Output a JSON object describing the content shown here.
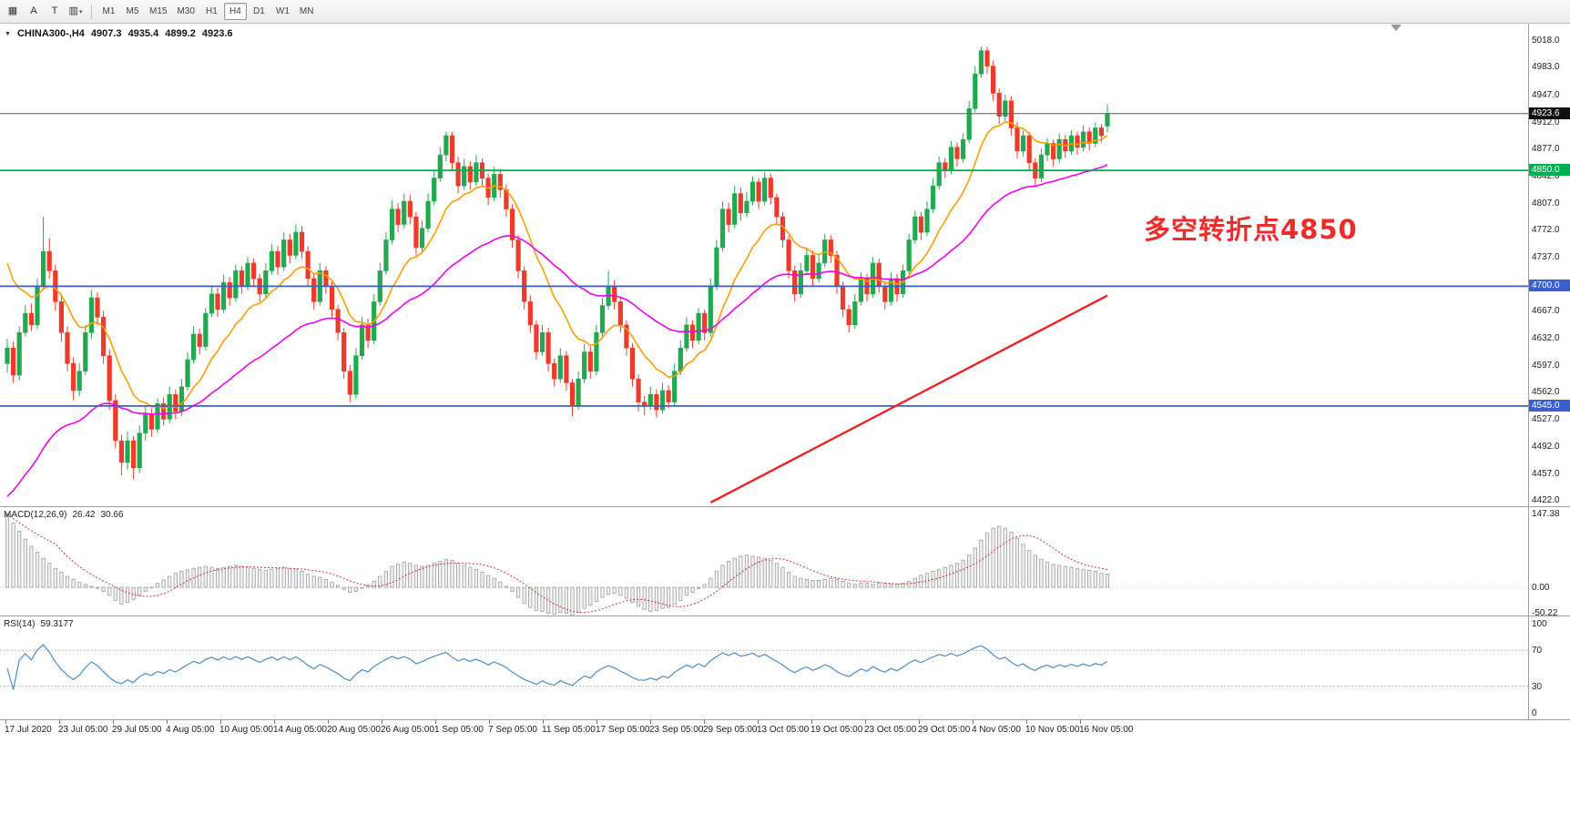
{
  "toolbar": {
    "tools": [
      {
        "name": "chart-window-tool",
        "glyph": "▦"
      },
      {
        "name": "text-annotation-tool",
        "glyph": "A"
      },
      {
        "name": "text-label-tool",
        "glyph": "T"
      },
      {
        "name": "indicators-menu",
        "glyph": "▥",
        "caret": true
      }
    ],
    "timeframes": [
      "M1",
      "M5",
      "M15",
      "M30",
      "H1",
      "H4",
      "D1",
      "W1",
      "MN"
    ],
    "active_timeframe": "H4"
  },
  "icons": {
    "expand": "▼",
    "caret": "▾"
  },
  "symbol_info": {
    "name": "CHINA300-,H4",
    "open": "4907.3",
    "high": "4935.4",
    "low": "4899.2",
    "close": "4923.6"
  },
  "annotation": {
    "text": "多空转折点4850",
    "color": "#ee2b2b"
  },
  "chart_data": {
    "type": "candlestick",
    "symbol": "CHINA300-",
    "timeframe": "H4",
    "title": "CHINA300-,H4",
    "price_range": [
      4414,
      5040
    ],
    "price_axis": [
      "5018.0",
      "4983.0",
      "4947.0",
      "4912.0",
      "4877.0",
      "4842.0",
      "4807.0",
      "4772.0",
      "4737.0",
      "4702.0",
      "4667.0",
      "4632.0",
      "4597.0",
      "4562.0",
      "4527.0",
      "4492.0",
      "4457.0",
      "4422.0"
    ],
    "time_axis": [
      "17 Jul 2020",
      "23 Jul 05:00",
      "29 Jul 05:00",
      "4 Aug 05:00",
      "10 Aug 05:00",
      "14 Aug 05:00",
      "20 Aug 05:00",
      "26 Aug 05:00",
      "1 Sep 05:00",
      "7 Sep 05:00",
      "11 Sep 05:00",
      "17 Sep 05:00",
      "23 Sep 05:00",
      "29 Sep 05:00",
      "13 Oct 05:00",
      "19 Oct 05:00",
      "23 Oct 05:00",
      "29 Oct 05:00",
      "4 Nov 05:00",
      "10 Nov 05:00",
      "16 Nov 05:00"
    ],
    "levels": [
      {
        "price": 4923.6,
        "label": "4923.6",
        "type": "current",
        "color": "#5a5a5a",
        "badge": "#111111"
      },
      {
        "price": 4850.0,
        "label": "4850.0",
        "type": "line",
        "color": "#00b050",
        "badge": "#00b050"
      },
      {
        "price": 4700.0,
        "label": "4700.0",
        "type": "line",
        "color": "#3a5fcd",
        "badge": "#3a5fcd"
      },
      {
        "price": 4545.0,
        "label": "4545.0",
        "type": "line",
        "color": "#3a5fcd",
        "badge": "#3a5fcd"
      }
    ],
    "colors": {
      "up": "#21a94f",
      "down": "#ed3b2b"
    },
    "ma_fast": {
      "period": 12,
      "start": 4750,
      "color": "#ff9d00"
    },
    "ma_slow": {
      "period": 40,
      "start": 4418,
      "color": "#f000f0"
    },
    "trendline": {
      "from_index": 117,
      "from_price": 4420,
      "to_index": 183,
      "to_price": 4688,
      "color": "#f02020"
    },
    "candles": [
      [
        4600,
        4632,
        4588,
        4620
      ],
      [
        4620,
        4628,
        4575,
        4585
      ],
      [
        4585,
        4648,
        4578,
        4640
      ],
      [
        4640,
        4676,
        4635,
        4665
      ],
      [
        4665,
        4678,
        4642,
        4650
      ],
      [
        4650,
        4710,
        4645,
        4700
      ],
      [
        4700,
        4790,
        4695,
        4745
      ],
      [
        4745,
        4762,
        4710,
        4720
      ],
      [
        4720,
        4728,
        4668,
        4680
      ],
      [
        4680,
        4690,
        4628,
        4640
      ],
      [
        4640,
        4648,
        4590,
        4600
      ],
      [
        4600,
        4608,
        4552,
        4565
      ],
      [
        4565,
        4600,
        4558,
        4590
      ],
      [
        4590,
        4650,
        4585,
        4640
      ],
      [
        4640,
        4695,
        4632,
        4685
      ],
      [
        4685,
        4692,
        4650,
        4660
      ],
      [
        4660,
        4668,
        4600,
        4610
      ],
      [
        4610,
        4618,
        4540,
        4552
      ],
      [
        4552,
        4560,
        4490,
        4500
      ],
      [
        4500,
        4508,
        4455,
        4472
      ],
      [
        4472,
        4512,
        4462,
        4500
      ],
      [
        4500,
        4506,
        4450,
        4465
      ],
      [
        4465,
        4520,
        4458,
        4510
      ],
      [
        4510,
        4545,
        4500,
        4535
      ],
      [
        4535,
        4542,
        4505,
        4515
      ],
      [
        4515,
        4555,
        4510,
        4548
      ],
      [
        4548,
        4556,
        4520,
        4528
      ],
      [
        4528,
        4570,
        4522,
        4560
      ],
      [
        4560,
        4566,
        4528,
        4538
      ],
      [
        4538,
        4580,
        4532,
        4570
      ],
      [
        4570,
        4615,
        4565,
        4605
      ],
      [
        4605,
        4648,
        4600,
        4638
      ],
      [
        4638,
        4645,
        4612,
        4622
      ],
      [
        4622,
        4672,
        4617,
        4665
      ],
      [
        4665,
        4700,
        4660,
        4690
      ],
      [
        4690,
        4698,
        4660,
        4670
      ],
      [
        4670,
        4715,
        4665,
        4705
      ],
      [
        4705,
        4712,
        4675,
        4685
      ],
      [
        4685,
        4728,
        4680,
        4720
      ],
      [
        4720,
        4726,
        4690,
        4700
      ],
      [
        4700,
        4738,
        4695,
        4730
      ],
      [
        4730,
        4736,
        4700,
        4710
      ],
      [
        4710,
        4716,
        4680,
        4690
      ],
      [
        4690,
        4730,
        4685,
        4720
      ],
      [
        4720,
        4755,
        4715,
        4745
      ],
      [
        4745,
        4752,
        4715,
        4725
      ],
      [
        4725,
        4770,
        4720,
        4760
      ],
      [
        4760,
        4768,
        4730,
        4740
      ],
      [
        4740,
        4780,
        4735,
        4770
      ],
      [
        4770,
        4778,
        4736,
        4745
      ],
      [
        4745,
        4752,
        4700,
        4710
      ],
      [
        4710,
        4716,
        4670,
        4680
      ],
      [
        4680,
        4730,
        4675,
        4720
      ],
      [
        4720,
        4726,
        4690,
        4700
      ],
      [
        4700,
        4706,
        4660,
        4670
      ],
      [
        4670,
        4676,
        4630,
        4640
      ],
      [
        4640,
        4646,
        4580,
        4590
      ],
      [
        4590,
        4598,
        4550,
        4560
      ],
      [
        4560,
        4620,
        4555,
        4610
      ],
      [
        4610,
        4660,
        4605,
        4650
      ],
      [
        4650,
        4658,
        4620,
        4630
      ],
      [
        4630,
        4690,
        4625,
        4680
      ],
      [
        4680,
        4730,
        4675,
        4720
      ],
      [
        4720,
        4770,
        4715,
        4760
      ],
      [
        4760,
        4812,
        4755,
        4800
      ],
      [
        4800,
        4808,
        4770,
        4780
      ],
      [
        4780,
        4820,
        4775,
        4810
      ],
      [
        4810,
        4818,
        4780,
        4790
      ],
      [
        4790,
        4796,
        4740,
        4750
      ],
      [
        4750,
        4785,
        4745,
        4775
      ],
      [
        4775,
        4820,
        4770,
        4810
      ],
      [
        4810,
        4850,
        4805,
        4840
      ],
      [
        4840,
        4880,
        4835,
        4870
      ],
      [
        4870,
        4900,
        4862,
        4895
      ],
      [
        4895,
        4900,
        4850,
        4860
      ],
      [
        4860,
        4868,
        4820,
        4830
      ],
      [
        4830,
        4865,
        4825,
        4855
      ],
      [
        4855,
        4862,
        4825,
        4835
      ],
      [
        4835,
        4870,
        4830,
        4860
      ],
      [
        4860,
        4866,
        4830,
        4840
      ],
      [
        4840,
        4846,
        4805,
        4815
      ],
      [
        4815,
        4855,
        4810,
        4845
      ],
      [
        4845,
        4852,
        4815,
        4825
      ],
      [
        4825,
        4832,
        4790,
        4800
      ],
      [
        4800,
        4806,
        4750,
        4760
      ],
      [
        4760,
        4766,
        4710,
        4720
      ],
      [
        4720,
        4726,
        4670,
        4680
      ],
      [
        4680,
        4688,
        4640,
        4650
      ],
      [
        4650,
        4656,
        4605,
        4615
      ],
      [
        4615,
        4650,
        4610,
        4640
      ],
      [
        4640,
        4646,
        4590,
        4600
      ],
      [
        4600,
        4606,
        4570,
        4580
      ],
      [
        4580,
        4620,
        4575,
        4610
      ],
      [
        4610,
        4616,
        4565,
        4575
      ],
      [
        4575,
        4580,
        4532,
        4545
      ],
      [
        4545,
        4590,
        4540,
        4580
      ],
      [
        4580,
        4625,
        4575,
        4615
      ],
      [
        4615,
        4622,
        4580,
        4590
      ],
      [
        4590,
        4650,
        4585,
        4640
      ],
      [
        4640,
        4685,
        4635,
        4675
      ],
      [
        4675,
        4720,
        4670,
        4700
      ],
      [
        4700,
        4708,
        4670,
        4680
      ],
      [
        4680,
        4686,
        4640,
        4650
      ],
      [
        4650,
        4656,
        4610,
        4620
      ],
      [
        4620,
        4626,
        4570,
        4580
      ],
      [
        4580,
        4586,
        4538,
        4550
      ],
      [
        4550,
        4558,
        4533,
        4545
      ],
      [
        4545,
        4570,
        4540,
        4560
      ],
      [
        4560,
        4566,
        4530,
        4540
      ],
      [
        4540,
        4575,
        4535,
        4565
      ],
      [
        4565,
        4572,
        4542,
        4550
      ],
      [
        4550,
        4600,
        4545,
        4590
      ],
      [
        4590,
        4630,
        4585,
        4620
      ],
      [
        4620,
        4660,
        4615,
        4650
      ],
      [
        4650,
        4656,
        4620,
        4630
      ],
      [
        4630,
        4672,
        4625,
        4665
      ],
      [
        4665,
        4670,
        4630,
        4640
      ],
      [
        4640,
        4710,
        4635,
        4700
      ],
      [
        4700,
        4760,
        4695,
        4750
      ],
      [
        4750,
        4810,
        4745,
        4800
      ],
      [
        4800,
        4808,
        4770,
        4780
      ],
      [
        4780,
        4830,
        4775,
        4820
      ],
      [
        4820,
        4828,
        4785,
        4795
      ],
      [
        4795,
        4822,
        4790,
        4810
      ],
      [
        4810,
        4842,
        4805,
        4835
      ],
      [
        4835,
        4840,
        4800,
        4810
      ],
      [
        4810,
        4848,
        4805,
        4840
      ],
      [
        4840,
        4846,
        4806,
        4815
      ],
      [
        4815,
        4820,
        4780,
        4790
      ],
      [
        4790,
        4796,
        4750,
        4760
      ],
      [
        4760,
        4766,
        4710,
        4720
      ],
      [
        4720,
        4726,
        4680,
        4690
      ],
      [
        4690,
        4730,
        4685,
        4720
      ],
      [
        4720,
        4750,
        4715,
        4740
      ],
      [
        4740,
        4746,
        4700,
        4710
      ],
      [
        4710,
        4740,
        4705,
        4730
      ],
      [
        4730,
        4768,
        4725,
        4760
      ],
      [
        4760,
        4766,
        4730,
        4740
      ],
      [
        4740,
        4746,
        4690,
        4700
      ],
      [
        4700,
        4706,
        4660,
        4670
      ],
      [
        4670,
        4676,
        4640,
        4650
      ],
      [
        4650,
        4690,
        4645,
        4680
      ],
      [
        4680,
        4718,
        4675,
        4710
      ],
      [
        4710,
        4716,
        4680,
        4690
      ],
      [
        4690,
        4738,
        4685,
        4730
      ],
      [
        4730,
        4736,
        4692,
        4700
      ],
      [
        4700,
        4706,
        4670,
        4680
      ],
      [
        4680,
        4718,
        4675,
        4710
      ],
      [
        4710,
        4716,
        4680,
        4690
      ],
      [
        4690,
        4728,
        4685,
        4720
      ],
      [
        4720,
        4768,
        4715,
        4760
      ],
      [
        4760,
        4798,
        4755,
        4790
      ],
      [
        4790,
        4796,
        4760,
        4770
      ],
      [
        4770,
        4810,
        4765,
        4800
      ],
      [
        4800,
        4840,
        4795,
        4830
      ],
      [
        4830,
        4868,
        4825,
        4860
      ],
      [
        4860,
        4866,
        4840,
        4850
      ],
      [
        4850,
        4888,
        4845,
        4880
      ],
      [
        4880,
        4886,
        4855,
        4865
      ],
      [
        4865,
        4898,
        4860,
        4890
      ],
      [
        4890,
        4940,
        4885,
        4930
      ],
      [
        4930,
        4985,
        4925,
        4975
      ],
      [
        4975,
        5010,
        4970,
        5005
      ],
      [
        5005,
        5010,
        4975,
        4985
      ],
      [
        4985,
        4992,
        4940,
        4950
      ],
      [
        4950,
        4956,
        4910,
        4920
      ],
      [
        4920,
        4948,
        4912,
        4940
      ],
      [
        4940,
        4946,
        4895,
        4905
      ],
      [
        4905,
        4912,
        4865,
        4875
      ],
      [
        4875,
        4902,
        4868,
        4895
      ],
      [
        4895,
        4900,
        4850,
        4860
      ],
      [
        4860,
        4866,
        4828,
        4840
      ],
      [
        4840,
        4878,
        4835,
        4870
      ],
      [
        4870,
        4892,
        4862,
        4885
      ],
      [
        4885,
        4890,
        4855,
        4865
      ],
      [
        4865,
        4898,
        4860,
        4890
      ],
      [
        4890,
        4896,
        4866,
        4875
      ],
      [
        4875,
        4902,
        4870,
        4895
      ],
      [
        4895,
        4900,
        4870,
        4880
      ],
      [
        4880,
        4908,
        4875,
        4900
      ],
      [
        4900,
        4906,
        4876,
        4885
      ],
      [
        4885,
        4912,
        4880,
        4905
      ],
      [
        4905,
        4910,
        4886,
        4895
      ],
      [
        4907.3,
        4935.4,
        4899.2,
        4923.6
      ]
    ],
    "macd": {
      "label": "MACD(12,26,9)",
      "current_main": "26.42",
      "current_signal": "30.66",
      "axis": [
        "147.38",
        "0.00",
        "-50.22"
      ],
      "range": [
        -58,
        160
      ],
      "signal_period": 9,
      "values": [
        147,
        128,
        112,
        96,
        82,
        70,
        58,
        48,
        38,
        30,
        22,
        16,
        10,
        6,
        2,
        -2,
        -8,
        -16,
        -26,
        -34,
        -30,
        -24,
        -16,
        -8,
        0,
        8,
        15,
        22,
        28,
        32,
        35,
        38,
        40,
        42,
        40,
        38,
        40,
        42,
        44,
        42,
        40,
        38,
        36,
        34,
        36,
        38,
        40,
        38,
        36,
        32,
        26,
        22,
        20,
        16,
        10,
        4,
        -4,
        -10,
        -8,
        -2,
        4,
        12,
        22,
        32,
        42,
        46,
        50,
        48,
        44,
        42,
        44,
        48,
        52,
        56,
        54,
        48,
        44,
        40,
        36,
        30,
        24,
        18,
        10,
        2,
        -8,
        -20,
        -32,
        -40,
        -46,
        -48,
        -52,
        -54,
        -50,
        -52,
        -56,
        -50,
        -42,
        -36,
        -28,
        -20,
        -14,
        -12,
        -16,
        -22,
        -30,
        -38,
        -44,
        -48,
        -46,
        -42,
        -40,
        -34,
        -26,
        -16,
        -10,
        -2,
        6,
        18,
        32,
        44,
        52,
        58,
        62,
        64,
        62,
        60,
        58,
        54,
        48,
        40,
        30,
        22,
        18,
        16,
        14,
        14,
        16,
        18,
        16,
        12,
        8,
        6,
        8,
        8,
        6,
        8,
        8,
        6,
        6,
        8,
        12,
        18,
        24,
        28,
        32,
        36,
        40,
        44,
        48,
        54,
        64,
        78,
        94,
        108,
        118,
        122,
        118,
        110,
        98,
        86,
        74,
        64,
        56,
        50,
        46,
        44,
        42,
        40,
        38,
        36,
        34,
        32,
        28,
        26.42
      ]
    },
    "rsi": {
      "label": "RSI(14)",
      "value": "59.3177",
      "period": 14,
      "levels": [
        70,
        30
      ],
      "axis": [
        "100",
        "70",
        "30",
        "0"
      ]
    }
  }
}
